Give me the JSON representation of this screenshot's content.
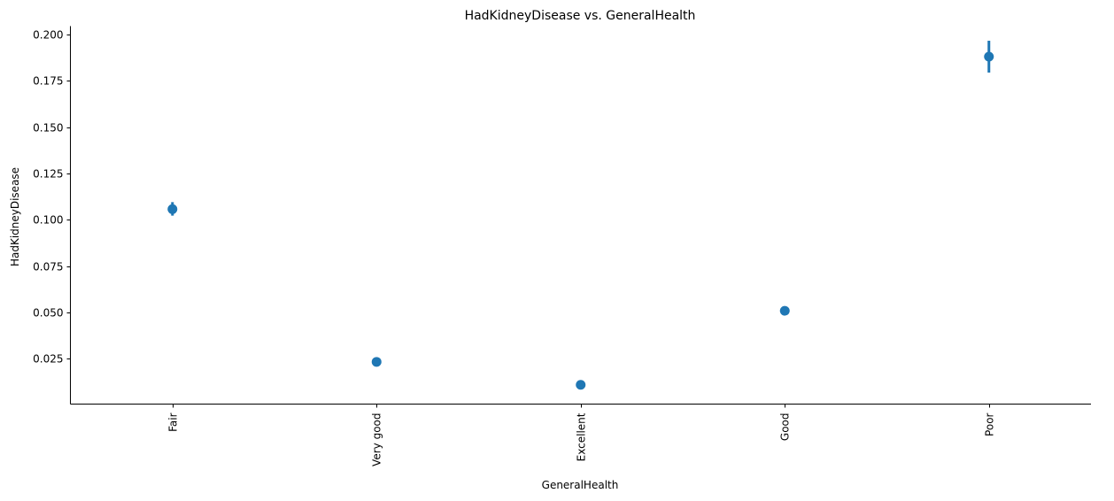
{
  "chart_data": {
    "type": "scatter",
    "title": "HadKidneyDisease vs. GeneralHealth",
    "xlabel": "GeneralHealth",
    "ylabel": "HadKidneyDisease",
    "categories": [
      "Fair",
      "Very good",
      "Excellent",
      "Good",
      "Poor"
    ],
    "series": [
      {
        "values": [
          0.1057,
          0.0232,
          0.0108,
          0.0508,
          0.1881
        ],
        "ci_low": [
          0.1022,
          0.0218,
          0.0099,
          0.0492,
          0.1795
        ],
        "ci_high": [
          0.1095,
          0.0245,
          0.0118,
          0.0522,
          0.1967
        ]
      }
    ],
    "ylim": [
      0.0004,
      0.2046
    ],
    "yticks": [
      0.025,
      0.05,
      0.075,
      0.1,
      0.125,
      0.15,
      0.175,
      0.2
    ],
    "ytick_labels": [
      "0.025",
      "0.050",
      "0.075",
      "0.100",
      "0.125",
      "0.150",
      "0.175",
      "0.200"
    ],
    "grid": false,
    "legend": "none",
    "color": "#1f77b4"
  }
}
